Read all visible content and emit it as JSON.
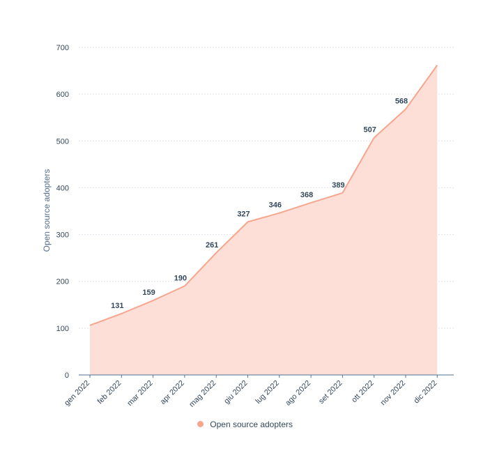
{
  "chart_data": {
    "type": "area",
    "categories": [
      "gen 2022",
      "feb 2022",
      "mar 2022",
      "apr 2022",
      "mag 2022",
      "giu 2022",
      "lug 2022",
      "ago 2022",
      "set 2022",
      "ott 2022",
      "nov 2022",
      "dic 2022"
    ],
    "series": [
      {
        "name": "Open source adopters",
        "values": [
          106,
          131,
          159,
          190,
          261,
          327,
          346,
          368,
          389,
          507,
          568,
          662
        ],
        "data_labels": [
          "",
          "131",
          "159",
          "190",
          "261",
          "327",
          "346",
          "368",
          "389",
          "507",
          "568",
          ""
        ]
      }
    ],
    "ylabel": "Open source adopters",
    "ylim": [
      0,
      700
    ],
    "yticks": [
      0,
      100,
      200,
      300,
      400,
      500,
      600,
      700
    ],
    "grid": true,
    "legend_position": "bottom-center",
    "colors": {
      "line": "#f7a58c",
      "fill": "#fedfd8",
      "legend_dot": "#f7a58c",
      "grid": "#dfe3eb",
      "axis": "#516f90"
    }
  }
}
